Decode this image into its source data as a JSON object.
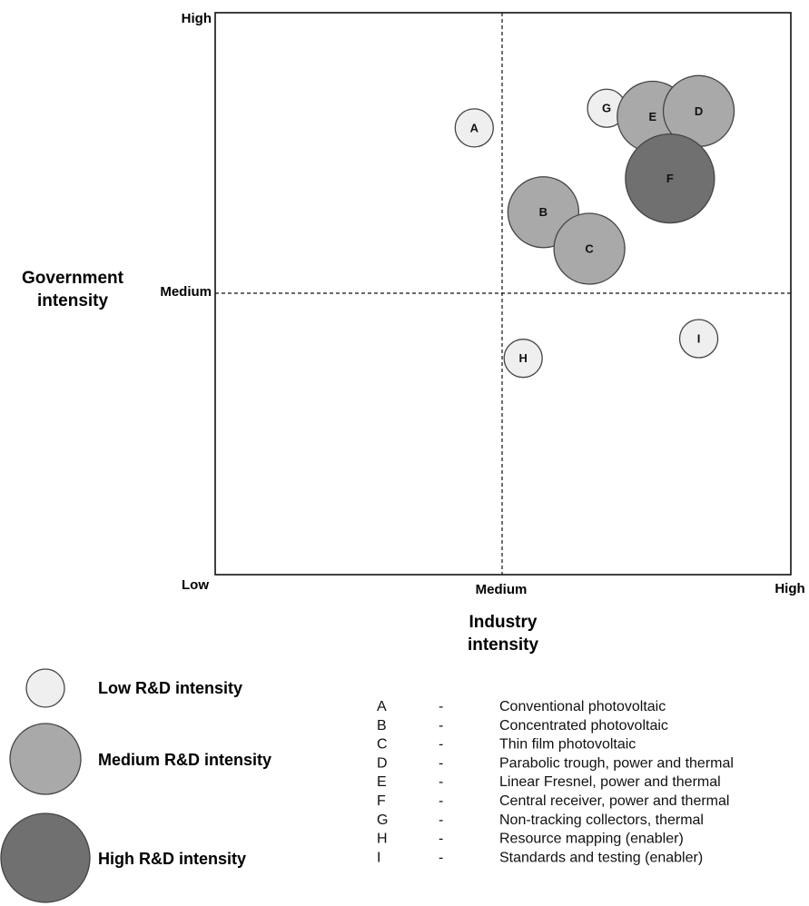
{
  "chart_data": {
    "type": "bubble",
    "x_axis": {
      "title_lines": [
        "Industry",
        "intensity"
      ],
      "ticks": [
        "Low",
        "Medium",
        "High"
      ],
      "range": [
        0,
        2
      ]
    },
    "y_axis": {
      "title_lines": [
        "Government",
        "intensity"
      ],
      "ticks": [
        "Low",
        "Medium",
        "High"
      ],
      "range": [
        0,
        2
      ]
    },
    "grid": "dashed divider lines at Medium on both axes",
    "points": [
      {
        "label": "A",
        "x": 0.9,
        "y": 1.59,
        "rd_intensity": "low"
      },
      {
        "label": "B",
        "x": 1.14,
        "y": 1.29,
        "rd_intensity": "medium"
      },
      {
        "label": "C",
        "x": 1.3,
        "y": 1.16,
        "rd_intensity": "medium"
      },
      {
        "label": "D",
        "x": 1.68,
        "y": 1.65,
        "rd_intensity": "medium"
      },
      {
        "label": "E",
        "x": 1.52,
        "y": 1.63,
        "rd_intensity": "medium"
      },
      {
        "label": "F",
        "x": 1.58,
        "y": 1.41,
        "rd_intensity": "high"
      },
      {
        "label": "G",
        "x": 1.36,
        "y": 1.66,
        "rd_intensity": "low"
      },
      {
        "label": "H",
        "x": 1.07,
        "y": 0.77,
        "rd_intensity": "low"
      },
      {
        "label": "I",
        "x": 1.68,
        "y": 0.84,
        "rd_intensity": "low"
      }
    ],
    "size_legend": [
      {
        "level": "low",
        "label": "Low R&D intensity",
        "color": "#efefef"
      },
      {
        "level": "medium",
        "label": "Medium R&D intensity",
        "color": "#a9a9a9"
      },
      {
        "level": "high",
        "label": "High R&D intensity",
        "color": "#707070"
      }
    ],
    "key": [
      {
        "letter": "A",
        "dash": "-",
        "description": "Conventional photovoltaic"
      },
      {
        "letter": "B",
        "dash": "-",
        "description": "Concentrated photovoltaic"
      },
      {
        "letter": "C",
        "dash": "-",
        "description": "Thin film photovoltaic"
      },
      {
        "letter": "D",
        "dash": "-",
        "description": "Parabolic trough, power and thermal"
      },
      {
        "letter": "E",
        "dash": "-",
        "description": "Linear Fresnel, power and thermal"
      },
      {
        "letter": "F",
        "dash": "-",
        "description": "Central receiver, power and thermal"
      },
      {
        "letter": "G",
        "dash": "-",
        "description": "Non-tracking collectors, thermal"
      },
      {
        "letter": "H",
        "dash": "-",
        "description": "Resource mapping (enabler)"
      },
      {
        "letter": "I",
        "dash": "-",
        "description": "Standards and testing (enabler)"
      }
    ]
  }
}
